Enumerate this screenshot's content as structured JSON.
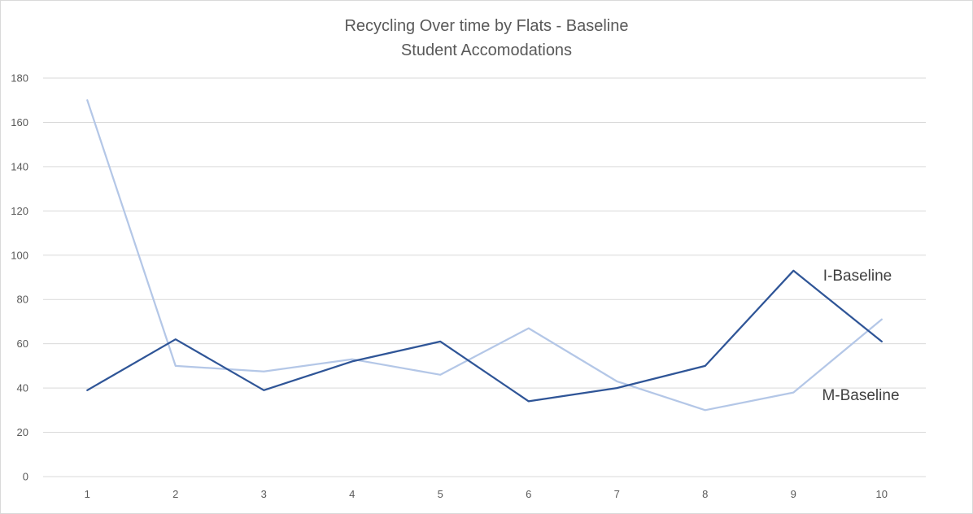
{
  "chart_data": {
    "type": "line",
    "title": "Recycling Over time by Flats - Baseline",
    "subtitle": "Student Accomodations",
    "xlabel": "",
    "ylabel": "",
    "categories": [
      "1",
      "2",
      "3",
      "4",
      "5",
      "6",
      "7",
      "8",
      "9",
      "10"
    ],
    "ylim": [
      0,
      180
    ],
    "yticks": [
      0,
      20,
      40,
      60,
      80,
      100,
      120,
      140,
      160,
      180
    ],
    "grid": true,
    "legend": "none",
    "series": [
      {
        "name": "I-Baseline",
        "color": "#2f5597",
        "values": [
          39,
          62,
          39,
          52,
          61,
          34,
          40,
          50,
          93,
          61
        ]
      },
      {
        "name": "M-Baseline",
        "color": "#b4c7e7",
        "values": [
          170,
          50,
          47.5,
          53,
          46,
          67,
          43,
          30,
          38,
          71
        ]
      }
    ]
  }
}
